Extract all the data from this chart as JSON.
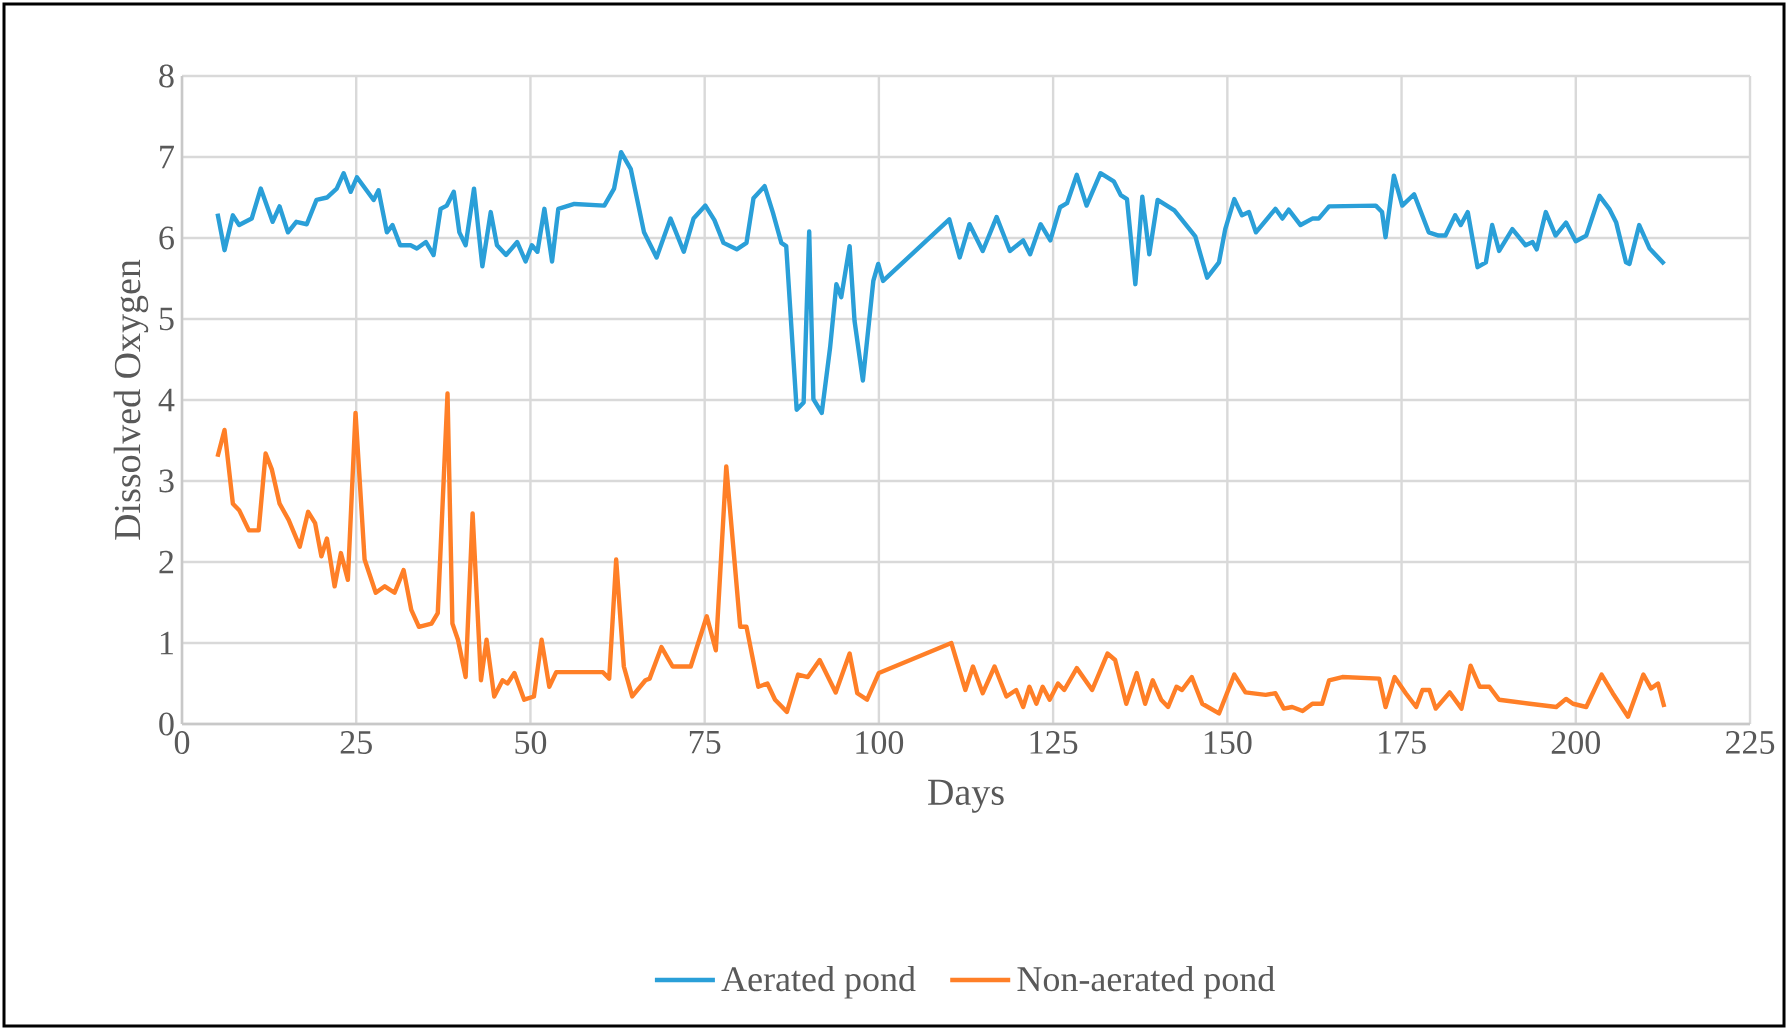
{
  "chart_data": {
    "type": "line",
    "xlabel": "Days",
    "ylabel": "Dissolved Oxygen",
    "xlim": [
      0,
      225
    ],
    "xticks": [
      0,
      25,
      50,
      75,
      100,
      125,
      150,
      175,
      200,
      225
    ],
    "ylim": [
      0,
      8
    ],
    "yticks": [
      0,
      1,
      2,
      3,
      4,
      5,
      6,
      7,
      8
    ],
    "grid": true,
    "legend": "bottom",
    "marker": "none",
    "line_style": "solid",
    "series": [
      {
        "name": "Aerated pond",
        "color": "#2a9fd8",
        "x": [
          5.1,
          6.1,
          7.3,
          8.2,
          10,
          11.3,
          13,
          14,
          15.2,
          16.4,
          17.9,
          19.3,
          20.8,
          22.2,
          23.2,
          24.2,
          25.1,
          27.5,
          28.2,
          29.4,
          30.2,
          31.3,
          32.8,
          33.7,
          35,
          36.1,
          37.1,
          38,
          39,
          39.8,
          40.7,
          41.9,
          43.1,
          44.3,
          45.2,
          46.5,
          48.1,
          49.3,
          50.2,
          51,
          52,
          53.1,
          54,
          56.3,
          60.6,
          62,
          63,
          64.4,
          66.3,
          68.1,
          70.1,
          72,
          73.4,
          75.1,
          76.4,
          77.7,
          79.6,
          81,
          82,
          83.6,
          84.8,
          86,
          86.7,
          88.2,
          89.2,
          90,
          90.6,
          91.8,
          93,
          93.9,
          94.6,
          95.8,
          96.5,
          97.7,
          99.2,
          99.9,
          100.6,
          110.1,
          111.6,
          113,
          114.9,
          116.9,
          118.8,
          120.7,
          121.7,
          123.2,
          124.6,
          126,
          127,
          128.4,
          129.8,
          131.8,
          133.7,
          134.7,
          135.6,
          136.8,
          137.8,
          138.8,
          140,
          142.4,
          145.4,
          147.1,
          148.8,
          149.7,
          151,
          152.1,
          153.1,
          154.1,
          156.9,
          157.9,
          158.8,
          160.5,
          162.2,
          163.1,
          164.6,
          171.3,
          172.2,
          172.7,
          173.9,
          175.1,
          176.8,
          178.9,
          180.3,
          181.3,
          182.7,
          183.5,
          184.5,
          185.9,
          187.1,
          188,
          189,
          190.9,
          192.8,
          193.8,
          194.4,
          195.7,
          197.1,
          198.6,
          200,
          201.5,
          203.4,
          204.8,
          205.8,
          207.2,
          207.7,
          209.1,
          210.6,
          212.7
        ],
        "values": [
          6.3,
          5.85,
          6.28,
          6.16,
          6.24,
          6.61,
          6.2,
          6.39,
          6.07,
          6.2,
          6.17,
          6.47,
          6.5,
          6.61,
          6.8,
          6.57,
          6.75,
          6.47,
          6.59,
          6.07,
          6.16,
          5.91,
          5.91,
          5.87,
          5.95,
          5.79,
          6.36,
          6.4,
          6.57,
          6.07,
          5.91,
          6.61,
          5.65,
          6.32,
          5.91,
          5.79,
          5.95,
          5.71,
          5.91,
          5.83,
          6.36,
          5.71,
          6.36,
          6.42,
          6.4,
          6.61,
          7.06,
          6.85,
          6.07,
          5.76,
          6.24,
          5.83,
          6.24,
          6.4,
          6.22,
          5.94,
          5.86,
          5.94,
          6.49,
          6.64,
          6.31,
          5.94,
          5.9,
          3.88,
          3.97,
          6.08,
          4.01,
          3.84,
          4.65,
          5.43,
          5.27,
          5.9,
          4.98,
          4.24,
          5.47,
          5.68,
          5.47,
          6.23,
          5.76,
          6.17,
          5.84,
          6.26,
          5.84,
          5.97,
          5.8,
          6.17,
          5.97,
          6.38,
          6.43,
          6.78,
          6.4,
          6.8,
          6.7,
          6.53,
          6.48,
          5.43,
          6.51,
          5.8,
          6.47,
          6.34,
          6.02,
          5.51,
          5.7,
          6.11,
          6.48,
          6.28,
          6.32,
          6.07,
          6.36,
          6.24,
          6.35,
          6.16,
          6.24,
          6.24,
          6.39,
          6.4,
          6.32,
          6.01,
          6.77,
          6.4,
          6.54,
          6.07,
          6.03,
          6.03,
          6.28,
          6.16,
          6.32,
          5.64,
          5.7,
          6.16,
          5.84,
          6.11,
          5.91,
          5.95,
          5.86,
          6.32,
          6.03,
          6.19,
          5.96,
          6.03,
          6.52,
          6.36,
          6.19,
          5.7,
          5.68,
          6.16,
          5.87,
          5.68
        ]
      },
      {
        "name": "Non-aerated pond",
        "color": "#ff7f27",
        "x": [
          5.1,
          6.1,
          7.3,
          8.2,
          9.6,
          11,
          12,
          12.9,
          14,
          15.3,
          16.9,
          18.1,
          19.1,
          20,
          20.8,
          21.9,
          22.8,
          23.8,
          24.9,
          26.2,
          27.8,
          29.1,
          30.5,
          31.8,
          32.9,
          34,
          35.8,
          36.7,
          38.1,
          38.8,
          39.6,
          40.7,
          41.7,
          42.9,
          43.7,
          44.8,
          46,
          46.7,
          47.7,
          49.1,
          50.5,
          51.6,
          52.7,
          53.7,
          60.4,
          61.3,
          62.3,
          63.4,
          64.6,
          66.5,
          67.1,
          68.8,
          70.4,
          71.6,
          73,
          75.3,
          76.6,
          78.1,
          80.1,
          81,
          82.7,
          84,
          85.1,
          86.8,
          88.4,
          89.8,
          91.5,
          93.8,
          95.8,
          96.9,
          98.3,
          100,
          110.4,
          112.4,
          113.5,
          114.9,
          116.6,
          118.3,
          119.7,
          120.7,
          121.6,
          122.6,
          123.5,
          124.5,
          125.7,
          126.6,
          128.4,
          130.6,
          132.8,
          133.9,
          135.5,
          137,
          138.2,
          139.3,
          140.5,
          141.5,
          142.7,
          143.5,
          144.9,
          146.4,
          148.8,
          151,
          152.6,
          155.5,
          156.9,
          158.1,
          159.3,
          160.8,
          162.2,
          163.6,
          164.6,
          166.5,
          171.8,
          172.7,
          174,
          175.6,
          177.1,
          178,
          179,
          179.9,
          181.9,
          183.6,
          184.9,
          186.2,
          187.6,
          189,
          193.4,
          197.2,
          198.6,
          199.6,
          201.5,
          203.7,
          205.3,
          207.5,
          209.7,
          210.8,
          211.8,
          212.7
        ],
        "values": [
          3.3,
          3.63,
          2.72,
          2.64,
          2.39,
          2.39,
          3.34,
          3.14,
          2.72,
          2.52,
          2.19,
          2.62,
          2.48,
          2.07,
          2.29,
          1.7,
          2.11,
          1.78,
          3.84,
          2.03,
          1.62,
          1.7,
          1.62,
          1.9,
          1.41,
          1.2,
          1.24,
          1.37,
          4.08,
          1.24,
          1.04,
          0.58,
          2.6,
          0.54,
          1.04,
          0.34,
          0.54,
          0.5,
          0.63,
          0.3,
          0.34,
          1.04,
          0.46,
          0.64,
          0.64,
          0.56,
          2.03,
          0.71,
          0.34,
          0.54,
          0.56,
          0.95,
          0.71,
          0.71,
          0.71,
          1.33,
          0.91,
          3.18,
          1.2,
          1.2,
          0.46,
          0.5,
          0.3,
          0.15,
          0.61,
          0.58,
          0.79,
          0.39,
          0.87,
          0.38,
          0.3,
          0.63,
          1.0,
          0.42,
          0.71,
          0.38,
          0.71,
          0.34,
          0.42,
          0.21,
          0.46,
          0.25,
          0.46,
          0.3,
          0.5,
          0.42,
          0.69,
          0.42,
          0.87,
          0.79,
          0.25,
          0.63,
          0.25,
          0.54,
          0.3,
          0.21,
          0.46,
          0.42,
          0.58,
          0.25,
          0.13,
          0.61,
          0.39,
          0.36,
          0.38,
          0.19,
          0.21,
          0.16,
          0.25,
          0.25,
          0.54,
          0.58,
          0.56,
          0.21,
          0.58,
          0.38,
          0.21,
          0.42,
          0.42,
          0.19,
          0.39,
          0.19,
          0.72,
          0.46,
          0.46,
          0.3,
          0.25,
          0.21,
          0.31,
          0.25,
          0.21,
          0.61,
          0.38,
          0.09,
          0.61,
          0.44,
          0.5,
          0.21
        ]
      }
    ]
  }
}
